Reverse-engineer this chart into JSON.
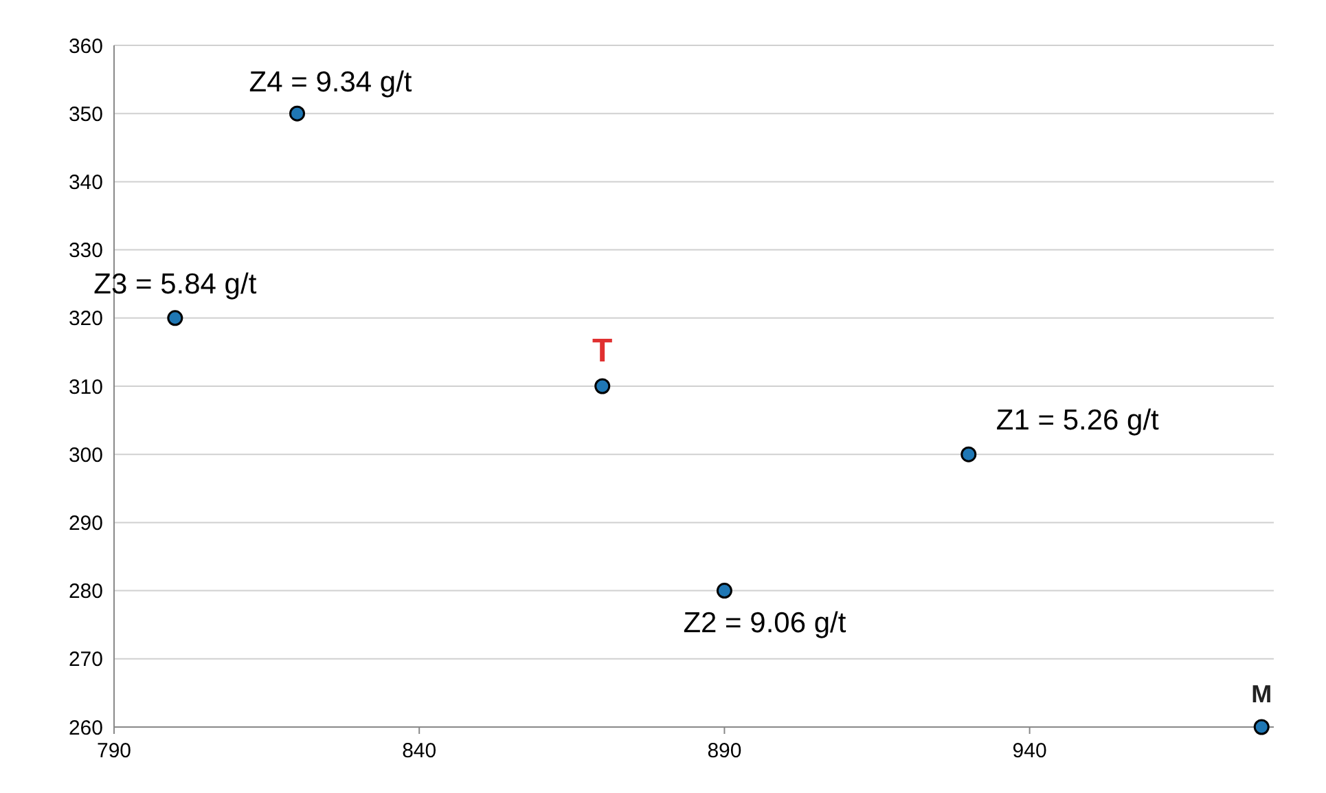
{
  "chart_data": {
    "type": "scatter",
    "x": [
      800,
      820,
      870,
      890,
      930,
      978
    ],
    "values": [
      320,
      350,
      310,
      280,
      300,
      260
    ],
    "color": "#1f77b4",
    "marker": "circle",
    "xlim": [
      790,
      980
    ],
    "xticks": [
      790,
      840,
      890,
      940
    ],
    "ylim": [
      260,
      360
    ],
    "yticks": [
      260,
      270,
      280,
      290,
      300,
      310,
      320,
      330,
      340,
      350,
      360
    ],
    "grid": "y",
    "annotations": [
      {
        "text": "Z3 = 5.84 g/t",
        "x": 800,
        "y": 320
      },
      {
        "text": "Z4 = 9.34 g/t",
        "x": 820,
        "y": 350
      },
      {
        "text": "T",
        "x": 870,
        "y": 310
      },
      {
        "text": "Z2 = 9.06 g/t",
        "x": 890,
        "y": 280
      },
      {
        "text": "Z1 = 5.26 g/t",
        "x": 930,
        "y": 300
      },
      {
        "text": "M",
        "x": 978,
        "y": 260
      }
    ]
  }
}
